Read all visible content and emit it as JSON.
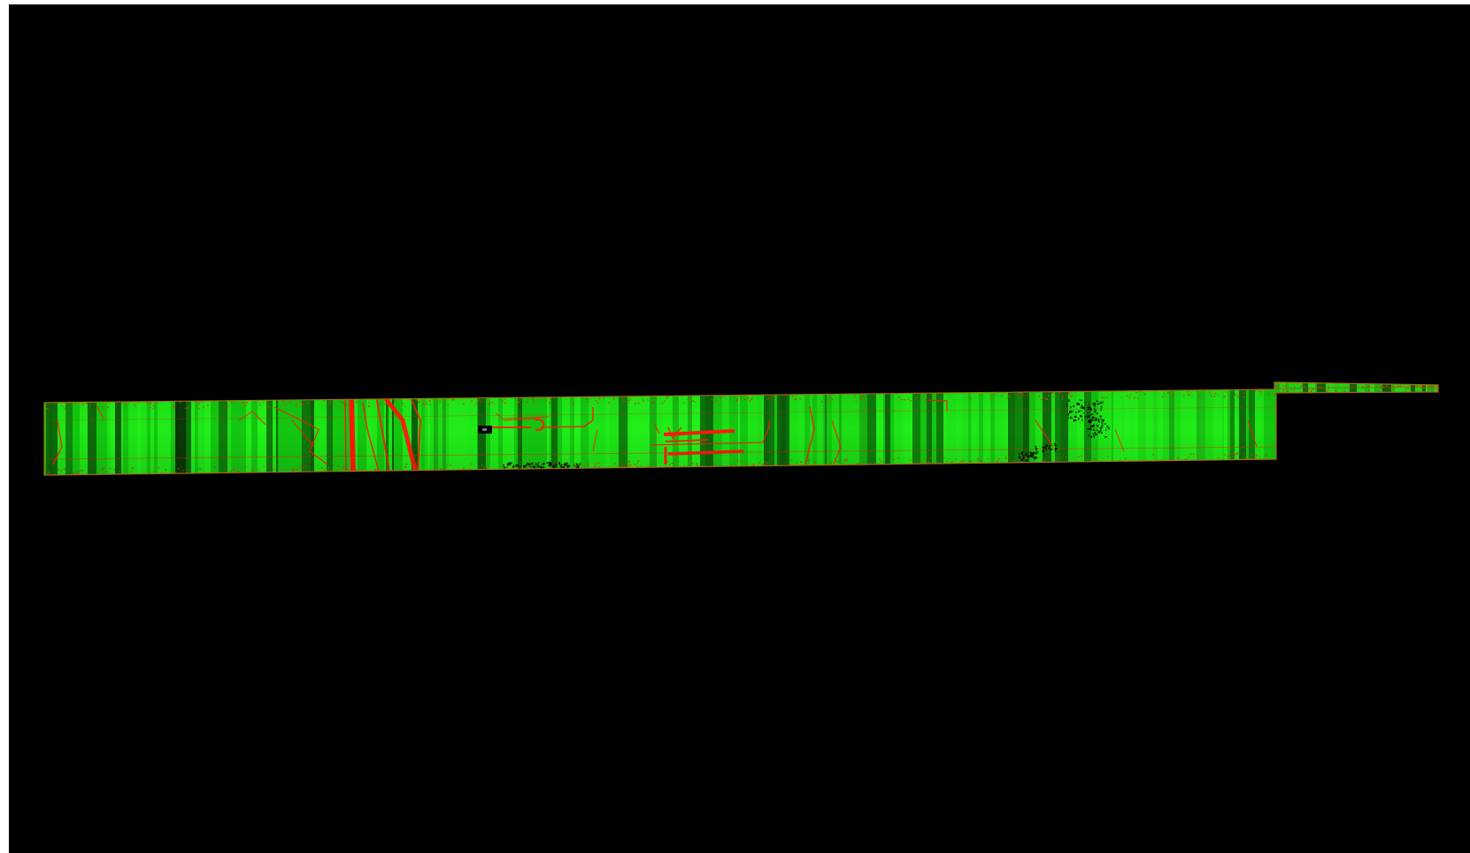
{
  "scene": {
    "background_color": "#000000",
    "frame_color": "#ffffff",
    "palette": {
      "bright": "#22f21a",
      "mid": "#14c810",
      "dark": "#0a5a08",
      "shadow": "#051f04",
      "feature": "#ff1a0a",
      "feature_dark": "#c01008",
      "edge": "#a86a10"
    },
    "strip": {
      "description_visible": "none"
    }
  }
}
